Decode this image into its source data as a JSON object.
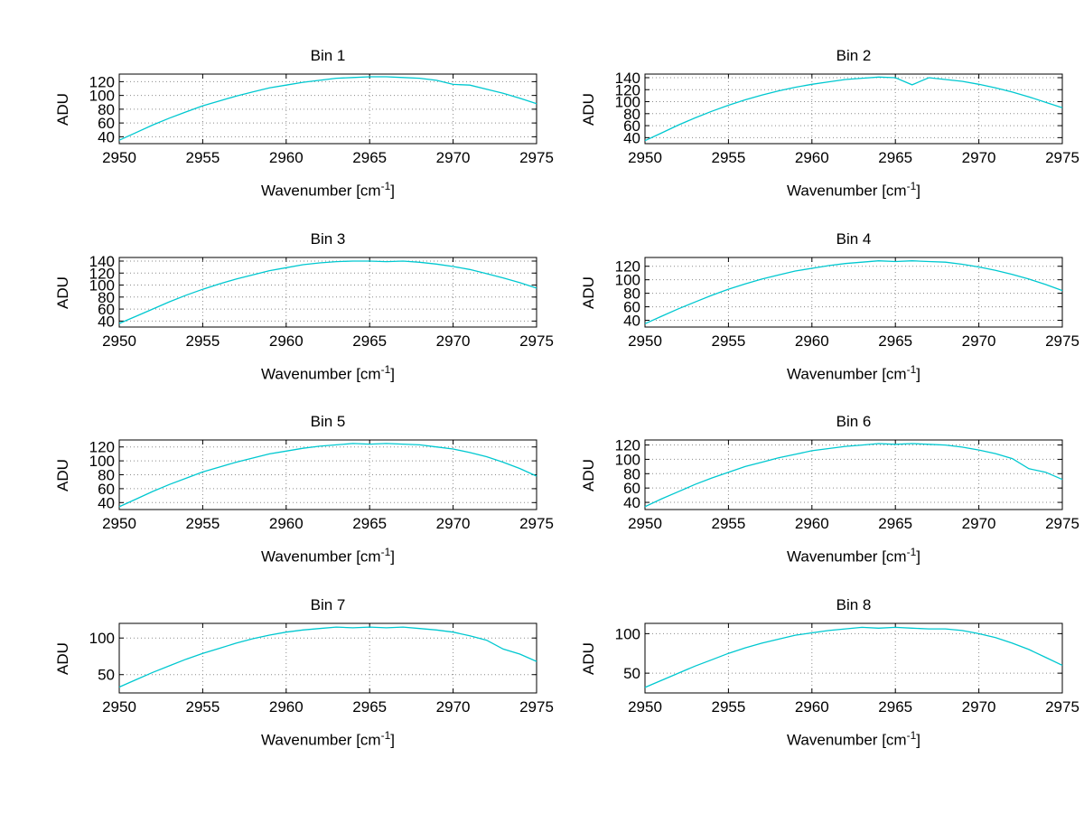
{
  "figure": {
    "background": "#ffffff"
  },
  "labels": {
    "ylabel": "ADU",
    "xlabel_pre": "Wavenumber [cm",
    "xlabel_sup": "-1",
    "xlabel_post": "]"
  },
  "style": {
    "line_color": "#00C8D0",
    "grid_color": "#8a8a8a",
    "axis_color": "#000000"
  },
  "chart_data": {
    "type": "line",
    "layout": "4x2 grid of subplots",
    "xlabel": "Wavenumber [cm^-1]",
    "ylabel": "ADU",
    "x_start": 2950,
    "x_step": 1,
    "x_ticks": [
      2950,
      2955,
      2960,
      2965,
      2970,
      2975
    ],
    "xlim": [
      2950,
      2975
    ],
    "grid": true,
    "charts": [
      {
        "title": "Bin 1",
        "ylim": [
          30,
          131
        ],
        "y_ticks": [
          40,
          60,
          80,
          100,
          120
        ],
        "values": [
          35,
          46,
          57,
          67,
          76,
          85,
          92,
          99,
          105,
          111,
          115,
          119,
          122,
          125,
          126,
          127,
          127,
          126,
          125,
          122,
          116,
          115,
          109,
          103,
          96,
          88
        ]
      },
      {
        "title": "Bin 2",
        "ylim": [
          30,
          146
        ],
        "y_ticks": [
          40,
          60,
          80,
          100,
          120,
          140
        ],
        "values": [
          35,
          48,
          61,
          73,
          84,
          94,
          103,
          111,
          118,
          124,
          129,
          133,
          137,
          139,
          141,
          140,
          128,
          140,
          137,
          134,
          129,
          123,
          116,
          108,
          99,
          90
        ]
      },
      {
        "title": "Bin 3",
        "ylim": [
          30,
          146
        ],
        "y_ticks": [
          40,
          60,
          80,
          100,
          120,
          140
        ],
        "values": [
          36,
          48,
          60,
          72,
          83,
          93,
          102,
          110,
          117,
          124,
          129,
          134,
          137,
          139,
          140,
          140,
          139,
          140,
          138,
          135,
          131,
          126,
          119,
          112,
          104,
          95
        ]
      },
      {
        "title": "Bin 4",
        "ylim": [
          30,
          133
        ],
        "y_ticks": [
          40,
          60,
          80,
          100,
          120
        ],
        "values": [
          35,
          46,
          57,
          67,
          77,
          86,
          94,
          101,
          107,
          113,
          117,
          121,
          124,
          126,
          128,
          127,
          128,
          127,
          126,
          123,
          119,
          114,
          108,
          101,
          93,
          84
        ]
      },
      {
        "title": "Bin 5",
        "ylim": [
          30,
          130
        ],
        "y_ticks": [
          40,
          60,
          80,
          100,
          120
        ],
        "values": [
          34,
          45,
          56,
          66,
          75,
          84,
          91,
          98,
          104,
          110,
          114,
          118,
          121,
          123,
          125,
          124,
          125,
          124,
          123,
          120,
          117,
          112,
          106,
          98,
          89,
          78
        ]
      },
      {
        "title": "Bin 6",
        "ylim": [
          30,
          127
        ],
        "y_ticks": [
          40,
          60,
          80,
          100,
          120
        ],
        "values": [
          34,
          45,
          55,
          65,
          74,
          82,
          90,
          96,
          102,
          107,
          112,
          115,
          118,
          120,
          122,
          121,
          122,
          121,
          120,
          117,
          113,
          108,
          101,
          87,
          82,
          72
        ]
      },
      {
        "title": "Bin 7",
        "ylim": [
          25,
          120
        ],
        "y_ticks": [
          50,
          100
        ],
        "values": [
          33,
          43,
          53,
          62,
          71,
          79,
          86,
          93,
          99,
          104,
          108,
          111,
          113,
          115,
          114,
          115,
          114,
          115,
          113,
          111,
          108,
          103,
          97,
          85,
          78,
          68
        ]
      },
      {
        "title": "Bin 8",
        "ylim": [
          25,
          113
        ],
        "y_ticks": [
          50,
          100
        ],
        "values": [
          32,
          41,
          50,
          59,
          67,
          75,
          82,
          88,
          93,
          98,
          101,
          104,
          106,
          108,
          107,
          108,
          107,
          106,
          106,
          104,
          100,
          95,
          88,
          80,
          70,
          60
        ]
      }
    ]
  }
}
